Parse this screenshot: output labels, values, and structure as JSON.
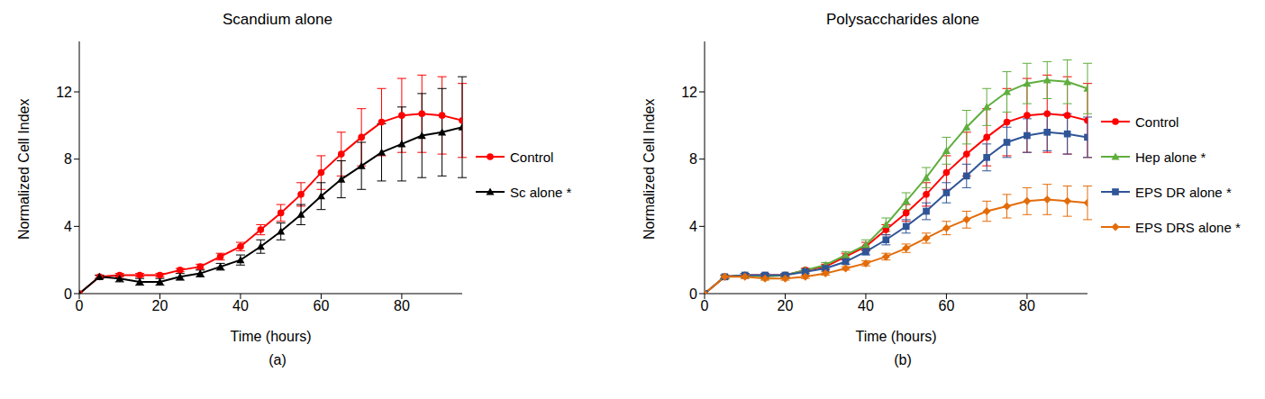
{
  "chart_data": [
    {
      "type": "line",
      "title": "Scandium alone",
      "x_label": "Time (hours)",
      "y_label": "Normalized Cell Index",
      "annotations": [
        "(a)"
      ],
      "legend": "right",
      "grid": false,
      "x": [
        0,
        5,
        10,
        15,
        20,
        25,
        30,
        35,
        40,
        45,
        50,
        55,
        60,
        65,
        70,
        75,
        80,
        85,
        90,
        95
      ],
      "xlim": [
        0,
        95
      ],
      "xticks": [
        0,
        20,
        40,
        60,
        80
      ],
      "ylim": [
        0,
        15
      ],
      "yticks": [
        0,
        4,
        8,
        12
      ],
      "series": [
        {
          "name": "Control",
          "color": "#ff0000",
          "marker": "circle",
          "values": [
            0,
            1.0,
            1.1,
            1.1,
            1.1,
            1.4,
            1.6,
            2.2,
            2.8,
            3.8,
            4.8,
            5.9,
            7.2,
            8.3,
            9.3,
            10.2,
            10.6,
            10.7,
            10.6,
            10.3
          ],
          "errors": [
            0,
            0.1,
            0.1,
            0.1,
            0.1,
            0.1,
            0.15,
            0.2,
            0.25,
            0.3,
            0.5,
            0.7,
            1.0,
            1.3,
            1.7,
            2.0,
            2.2,
            2.3,
            2.3,
            2.2
          ]
        },
        {
          "name": "Sc alone *",
          "color": "#000000",
          "marker": "triangle",
          "values": [
            0,
            1.0,
            0.9,
            0.7,
            0.7,
            1.0,
            1.2,
            1.6,
            2.0,
            2.8,
            3.7,
            4.7,
            5.8,
            6.8,
            7.6,
            8.4,
            8.9,
            9.4,
            9.6,
            9.9
          ],
          "errors": [
            0,
            0.1,
            0.2,
            0.2,
            0.2,
            0.2,
            0.2,
            0.2,
            0.3,
            0.4,
            0.5,
            0.6,
            0.8,
            1.1,
            1.4,
            1.7,
            2.2,
            2.5,
            2.6,
            3.0
          ]
        }
      ]
    },
    {
      "type": "line",
      "title": "Polysaccharides alone",
      "x_label": "Time (hours)",
      "y_label": "Normalized Cell Index",
      "annotations": [
        "(b)"
      ],
      "legend": "right",
      "grid": false,
      "x": [
        0,
        5,
        10,
        15,
        20,
        25,
        30,
        35,
        40,
        45,
        50,
        55,
        60,
        65,
        70,
        75,
        80,
        85,
        90,
        95
      ],
      "xlim": [
        0,
        95
      ],
      "xticks": [
        0,
        20,
        40,
        60,
        80
      ],
      "ylim": [
        0,
        15
      ],
      "yticks": [
        0,
        4,
        8,
        12
      ],
      "series": [
        {
          "name": "Control",
          "color": "#ff0000",
          "marker": "circle",
          "values": [
            0,
            1.0,
            1.1,
            1.1,
            1.1,
            1.4,
            1.6,
            2.2,
            2.8,
            3.8,
            4.8,
            5.9,
            7.2,
            8.3,
            9.3,
            10.2,
            10.6,
            10.7,
            10.6,
            10.3
          ],
          "errors": [
            0,
            0.1,
            0.1,
            0.1,
            0.1,
            0.1,
            0.15,
            0.2,
            0.25,
            0.3,
            0.5,
            0.7,
            1.0,
            1.3,
            1.7,
            2.0,
            2.2,
            2.3,
            2.3,
            2.2
          ]
        },
        {
          "name": "Hep alone *",
          "color": "#5fae3e",
          "marker": "triangle",
          "values": [
            0,
            1.0,
            1.1,
            1.0,
            1.1,
            1.4,
            1.7,
            2.3,
            2.9,
            4.1,
            5.5,
            6.9,
            8.5,
            9.9,
            11.1,
            12.0,
            12.5,
            12.7,
            12.6,
            12.2
          ],
          "errors": [
            0,
            0.1,
            0.1,
            0.1,
            0.1,
            0.1,
            0.15,
            0.2,
            0.3,
            0.4,
            0.5,
            0.6,
            0.8,
            1.0,
            1.1,
            1.2,
            1.2,
            1.1,
            1.3,
            1.5
          ]
        },
        {
          "name": "EPS DR alone *",
          "color": "#2f5597",
          "marker": "square",
          "values": [
            0,
            1.0,
            1.1,
            1.1,
            1.1,
            1.3,
            1.5,
            1.9,
            2.5,
            3.2,
            4.0,
            4.9,
            6.0,
            7.0,
            8.1,
            9.0,
            9.4,
            9.6,
            9.5,
            9.3
          ],
          "errors": [
            0,
            0.1,
            0.1,
            0.1,
            0.1,
            0.1,
            0.1,
            0.15,
            0.2,
            0.3,
            0.4,
            0.5,
            0.6,
            0.7,
            0.8,
            0.9,
            1.0,
            1.1,
            1.2,
            1.2
          ]
        },
        {
          "name": "EPS DRS alone *",
          "color": "#e36c09",
          "marker": "diamond",
          "values": [
            0,
            1.0,
            1.0,
            0.9,
            0.9,
            1.0,
            1.2,
            1.5,
            1.8,
            2.2,
            2.7,
            3.3,
            3.9,
            4.4,
            4.9,
            5.2,
            5.5,
            5.6,
            5.5,
            5.4
          ],
          "errors": [
            0,
            0.1,
            0.1,
            0.1,
            0.1,
            0.1,
            0.1,
            0.1,
            0.15,
            0.2,
            0.25,
            0.3,
            0.4,
            0.5,
            0.6,
            0.7,
            0.8,
            0.9,
            0.9,
            1.0
          ]
        }
      ]
    }
  ]
}
